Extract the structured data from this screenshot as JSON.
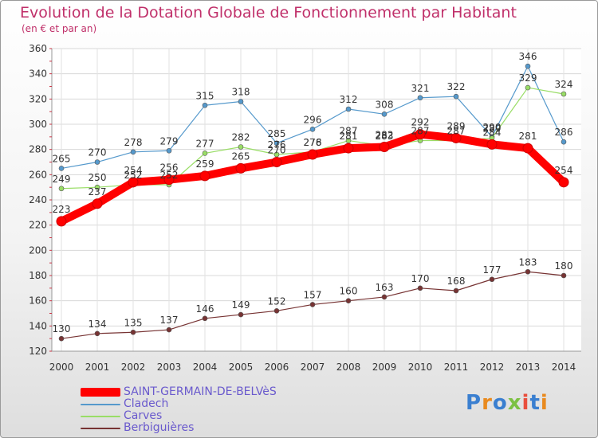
{
  "title": "Evolution de la Dotation Globale de Fonctionnement par Habitant",
  "subtitle": "(en € et par an)",
  "logo_text": "Proxiti",
  "chart_data": {
    "type": "line",
    "title": "Evolution de la Dotation Globale de Fonctionnement par Habitant",
    "subtitle": "(en € et par an)",
    "categories": [
      "2000",
      "2001",
      "2002",
      "2003",
      "2004",
      "2005",
      "2006",
      "2007",
      "2008",
      "2009",
      "2010",
      "2011",
      "2012",
      "2013",
      "2014"
    ],
    "ylim": [
      120,
      360
    ],
    "yticks": [
      120,
      140,
      160,
      180,
      200,
      220,
      240,
      260,
      280,
      300,
      320,
      340,
      360
    ],
    "grid": true,
    "legend_position": "bottom-left",
    "series": [
      {
        "name": "SAINT-GERMAIN-DE-BELVèS",
        "color": "#ff0000",
        "values": [
          223,
          237,
          254,
          256,
          259,
          265,
          270,
          276,
          281,
          282,
          292,
          289,
          284,
          281,
          254
        ],
        "labels": [
          "223",
          "237",
          "254",
          "256",
          "259",
          "265",
          "270",
          "276",
          "281",
          "282",
          "292",
          "289",
          "284",
          "281",
          "254"
        ]
      },
      {
        "name": "Cladech",
        "color": "#5599cc",
        "values": [
          265,
          270,
          278,
          279,
          315,
          318,
          285,
          296,
          312,
          308,
          321,
          322,
          290,
          346,
          286
        ],
        "labels": [
          "265",
          "270",
          "278",
          "279",
          "315",
          "318",
          "285",
          "296",
          "312",
          "308",
          "321",
          "322",
          "290",
          "346",
          "286"
        ]
      },
      {
        "name": "Carves",
        "color": "#99dd66",
        "values": [
          249,
          250,
          252,
          252,
          277,
          282,
          276,
          278,
          287,
          283,
          287,
          287,
          289,
          329,
          324
        ],
        "labels": [
          "249",
          "250",
          "252",
          "252",
          "277",
          "282",
          "276",
          "278",
          "287",
          "283",
          "287",
          "287",
          "289",
          "329",
          "324"
        ]
      },
      {
        "name": "Berbiguières",
        "color": "#773333",
        "values": [
          130,
          134,
          135,
          137,
          146,
          149,
          152,
          157,
          160,
          163,
          170,
          168,
          177,
          183,
          180
        ],
        "labels": [
          "130",
          "134",
          "135",
          "137",
          "146",
          "149",
          "152",
          "157",
          "160",
          "163",
          "170",
          "168",
          "177",
          "183",
          "180"
        ]
      }
    ]
  }
}
